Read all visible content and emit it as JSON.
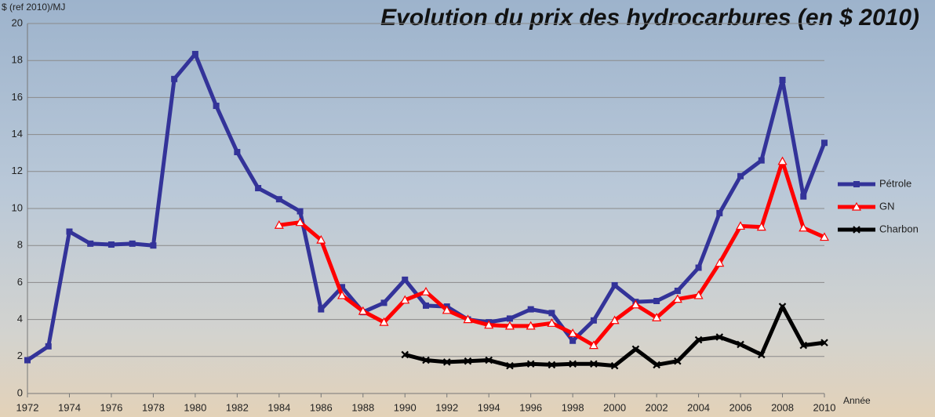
{
  "chart_data": {
    "type": "line",
    "title": "Evolution du prix des hydrocarbures (en $ 2010)",
    "y_label": "$ (ref 2010)/MJ",
    "x_label": "Année",
    "x": [
      1972,
      1973,
      1974,
      1975,
      1976,
      1977,
      1978,
      1979,
      1980,
      1981,
      1982,
      1983,
      1984,
      1985,
      1986,
      1987,
      1988,
      1989,
      1990,
      1991,
      1992,
      1993,
      1994,
      1995,
      1996,
      1997,
      1998,
      1999,
      2000,
      2001,
      2002,
      2003,
      2004,
      2005,
      2006,
      2007,
      2008,
      2009,
      2010
    ],
    "series": [
      {
        "name": "Pétrole",
        "color": "#333399",
        "marker": "square",
        "values": [
          1.8,
          2.55,
          8.75,
          8.1,
          8.05,
          8.1,
          8.0,
          17.0,
          18.35,
          15.55,
          13.05,
          11.1,
          10.5,
          9.85,
          4.55,
          5.75,
          4.4,
          4.9,
          6.15,
          4.75,
          4.7,
          4.0,
          3.85,
          4.05,
          4.55,
          4.35,
          2.85,
          3.95,
          5.85,
          4.95,
          5.0,
          5.55,
          6.8,
          9.75,
          11.75,
          12.6,
          16.95,
          10.65,
          13.55
        ]
      },
      {
        "name": "GN",
        "color": "#ff0000",
        "marker": "triangle",
        "values": [
          null,
          null,
          null,
          null,
          null,
          null,
          null,
          null,
          null,
          null,
          null,
          null,
          9.1,
          9.25,
          8.3,
          5.3,
          4.45,
          3.85,
          5.05,
          5.5,
          4.5,
          4.0,
          3.7,
          3.65,
          3.65,
          3.8,
          3.25,
          2.6,
          3.95,
          4.8,
          4.1,
          5.1,
          5.3,
          7.05,
          9.05,
          9.0,
          12.55,
          8.95,
          8.45
        ]
      },
      {
        "name": "Charbon",
        "color": "#000000",
        "marker": "cross",
        "values": [
          null,
          null,
          null,
          null,
          null,
          null,
          null,
          null,
          null,
          null,
          null,
          null,
          null,
          null,
          null,
          null,
          null,
          null,
          2.1,
          1.8,
          1.7,
          1.75,
          1.8,
          1.5,
          1.6,
          1.55,
          1.6,
          1.6,
          1.5,
          2.4,
          1.55,
          1.75,
          2.9,
          3.05,
          2.65,
          2.1,
          4.7,
          2.6,
          2.75
        ]
      }
    ],
    "xlim": [
      1972,
      2010
    ],
    "xticks": [
      1972,
      1974,
      1976,
      1978,
      1980,
      1982,
      1984,
      1986,
      1988,
      1990,
      1992,
      1994,
      1996,
      1998,
      2000,
      2002,
      2004,
      2006,
      2008,
      2010
    ],
    "ylim": [
      0,
      20
    ],
    "yticks": [
      0,
      2,
      4,
      6,
      8,
      10,
      12,
      14,
      16,
      18,
      20
    ],
    "grid": true,
    "legend": "right"
  }
}
